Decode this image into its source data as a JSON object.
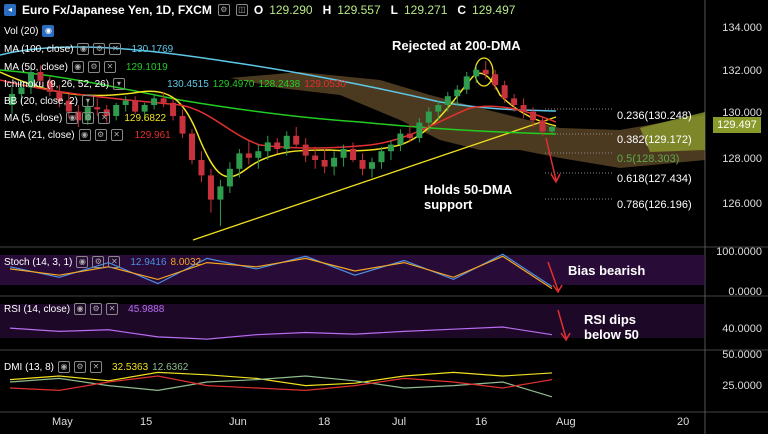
{
  "header": {
    "symbol": "Euro Fx/Japanese Yen, 1D, FXCM",
    "open_label": "O",
    "open": "129.290",
    "high_label": "H",
    "high": "129.557",
    "low_label": "L",
    "low": "129.271",
    "close_label": "C",
    "close": "129.497"
  },
  "legend": {
    "vol": "Vol (20)",
    "ma100": "MA (100, close)",
    "ma100_val": "130.1769",
    "ma50": "MA (50, close)",
    "ma50_val": "129.1019",
    "ichimoku": "Ichimoku (9, 26, 52, 26)",
    "ichi_vals": [
      "130.4515",
      "129.4970",
      "128.2438",
      "129.0530"
    ],
    "bb": "BB (20, close, 2)",
    "ma5": "MA (5, close)",
    "ma5_val": "129.6822",
    "ema21": "EMA (21, close)",
    "ema21_val": "129.961",
    "stoch": "Stoch (14, 3, 1)",
    "stoch_vals": [
      "12.9416",
      "8.0032"
    ],
    "rsi": "RSI (14, close)",
    "rsi_val": "45.9888",
    "dmi": "DMI (13, 8)",
    "dmi_vals": [
      "32.5363",
      "12.6362"
    ]
  },
  "annotations": {
    "rejected": "Rejected at 200-DMA",
    "holds": [
      "Holds 50-DMA",
      "support"
    ],
    "bias": "Bias bearish",
    "rsi": [
      "RSI dips",
      "below 50"
    ]
  },
  "fib_labels": [
    "0.236(130.248)",
    "0.382(129.172)",
    "0.5(128.303)",
    "0.618(127.434)",
    "0.786(126.196)"
  ],
  "price_box": "129.497",
  "colors": {
    "up": "#2e9e4e",
    "down": "#c8323c",
    "ma100": "#5ec8e8",
    "ma50": "#22cc22",
    "ma5": "#f0e020",
    "ema21": "#e03030",
    "cloud": "#8a6a3a",
    "stoch": "#7b1fa2"
  },
  "chart_data": [
    {
      "type": "candlestick",
      "title": "Euro Fx/Japanese Yen, 1D, FXCM",
      "y_axis": {
        "ticks": [
          126,
          128,
          130,
          132,
          134
        ],
        "tick_labels": [
          "126.000",
          "128.000",
          "130.000",
          "132.000",
          "134.000"
        ],
        "range": [
          124.4,
          135.2
        ]
      },
      "x_axis": {
        "tick_labels": [
          "May",
          "15",
          "Jun",
          "18",
          "Jul",
          "16",
          "Aug",
          "20"
        ]
      },
      "candles": [
        [
          130.5,
          131.3,
          130.1,
          131.0
        ],
        [
          131.0,
          131.6,
          130.6,
          131.3
        ],
        [
          131.3,
          132.2,
          131.0,
          132.0
        ],
        [
          132.0,
          132.3,
          131.4,
          131.6
        ],
        [
          131.6,
          131.8,
          130.9,
          131.1
        ],
        [
          131.1,
          131.4,
          130.4,
          130.7
        ],
        [
          130.7,
          131.0,
          129.9,
          130.2
        ],
        [
          130.2,
          130.5,
          129.5,
          129.8
        ],
        [
          129.8,
          130.7,
          129.6,
          130.4
        ],
        [
          130.4,
          130.8,
          130.0,
          130.3
        ],
        [
          130.3,
          130.5,
          129.7,
          130.0
        ],
        [
          130.0,
          130.6,
          129.8,
          130.5
        ],
        [
          130.5,
          130.9,
          130.2,
          130.7
        ],
        [
          130.7,
          130.9,
          130.1,
          130.2
        ],
        [
          130.2,
          130.6,
          129.8,
          130.5
        ],
        [
          130.5,
          131.0,
          130.3,
          130.8
        ],
        [
          130.8,
          131.1,
          130.4,
          130.6
        ],
        [
          130.6,
          130.8,
          129.8,
          130.0
        ],
        [
          130.0,
          130.3,
          129.0,
          129.2
        ],
        [
          129.2,
          129.4,
          127.8,
          128.0
        ],
        [
          128.0,
          128.4,
          127.0,
          127.3
        ],
        [
          127.3,
          127.6,
          125.6,
          126.2
        ],
        [
          126.2,
          127.1,
          125.0,
          126.8
        ],
        [
          126.8,
          127.9,
          126.5,
          127.6
        ],
        [
          127.6,
          128.5,
          127.2,
          128.3
        ],
        [
          128.3,
          128.9,
          127.8,
          128.1
        ],
        [
          128.1,
          128.7,
          127.6,
          128.4
        ],
        [
          128.4,
          129.1,
          128.0,
          128.8
        ],
        [
          128.8,
          129.0,
          128.3,
          128.5
        ],
        [
          128.5,
          129.3,
          128.2,
          129.1
        ],
        [
          129.1,
          129.5,
          128.6,
          128.7
        ],
        [
          128.7,
          129.0,
          127.9,
          128.2
        ],
        [
          128.2,
          128.6,
          127.6,
          128.0
        ],
        [
          128.0,
          128.5,
          127.4,
          127.7
        ],
        [
          127.7,
          128.4,
          127.3,
          128.1
        ],
        [
          128.1,
          128.7,
          127.7,
          128.5
        ],
        [
          128.5,
          128.8,
          127.9,
          128.0
        ],
        [
          128.0,
          128.3,
          127.3,
          127.6
        ],
        [
          127.6,
          128.1,
          127.2,
          127.9
        ],
        [
          127.9,
          128.6,
          127.6,
          128.4
        ],
        [
          128.4,
          128.9,
          128.0,
          128.7
        ],
        [
          128.7,
          129.4,
          128.4,
          129.2
        ],
        [
          129.2,
          129.6,
          128.8,
          129.0
        ],
        [
          129.0,
          129.9,
          128.8,
          129.7
        ],
        [
          129.7,
          130.4,
          129.3,
          130.2
        ],
        [
          130.2,
          130.7,
          129.8,
          130.5
        ],
        [
          130.5,
          131.1,
          130.2,
          130.9
        ],
        [
          130.9,
          131.4,
          130.5,
          131.2
        ],
        [
          131.2,
          132.0,
          131.0,
          131.8
        ],
        [
          131.8,
          132.3,
          131.5,
          132.1
        ],
        [
          132.1,
          132.5,
          131.7,
          131.9
        ],
        [
          131.9,
          132.1,
          131.2,
          131.4
        ],
        [
          131.4,
          131.6,
          130.6,
          130.8
        ],
        [
          130.8,
          131.0,
          130.2,
          130.5
        ],
        [
          130.5,
          130.8,
          129.9,
          130.2
        ],
        [
          130.2,
          130.4,
          129.5,
          129.8
        ],
        [
          129.8,
          130.0,
          129.1,
          129.3
        ],
        [
          129.3,
          129.6,
          129.2,
          129.5
        ]
      ],
      "series": [
        {
          "name": "MA (100, close)",
          "values": [
            131.0,
            131.0,
            130.95,
            130.9,
            130.85,
            130.8,
            130.75,
            130.7
          ]
        },
        {
          "name": "MA (50, close)",
          "values": [
            130.8,
            130.5,
            130.2,
            129.8,
            129.4,
            129.2,
            129.1,
            129.1
          ]
        },
        {
          "name": "MA (5, close)",
          "values": [
            131.2,
            130.6,
            130.3,
            127.0,
            128.2,
            128.0,
            131.6,
            129.68
          ]
        },
        {
          "name": "EMA (21, close)",
          "values": [
            130.9,
            130.5,
            130.4,
            128.9,
            128.5,
            128.2,
            130.5,
            129.96
          ]
        }
      ],
      "fibonacci": [
        {
          "level": "0.236",
          "price": 130.248
        },
        {
          "level": "0.382",
          "price": 129.172
        },
        {
          "level": "0.5",
          "price": 128.303
        },
        {
          "level": "0.618",
          "price": 127.434
        },
        {
          "level": "0.786",
          "price": 126.196
        }
      ]
    },
    {
      "type": "line",
      "title": "Stoch (14, 3, 1)",
      "y_axis": {
        "tick_labels": [
          "0.0000",
          "100.0000"
        ],
        "range": [
          0,
          100
        ]
      },
      "series": [
        {
          "name": "K",
          "values": [
            60,
            35,
            70,
            20,
            80,
            55,
            85,
            40,
            75,
            30,
            90,
            12.94
          ]
        },
        {
          "name": "D",
          "values": [
            55,
            40,
            60,
            30,
            70,
            60,
            80,
            50,
            70,
            35,
            85,
            8.0
          ]
        }
      ]
    },
    {
      "type": "line",
      "title": "RSI (14, close)",
      "y_axis": {
        "tick_labels": [
          "40.0000"
        ]
      },
      "series": [
        {
          "name": "RSI",
          "values": [
            58,
            52,
            55,
            42,
            38,
            46,
            50,
            47,
            52,
            56,
            60,
            45.99
          ]
        }
      ]
    },
    {
      "type": "line",
      "title": "DMI (13, 8)",
      "y_axis": {
        "tick_labels": [
          "25.0000",
          "50.0000"
        ]
      },
      "series": [
        {
          "name": "ADX",
          "values": [
            27,
            30,
            26,
            33,
            31,
            28,
            22,
            24,
            30,
            33,
            30,
            32.54
          ]
        },
        {
          "name": "+DI",
          "values": [
            25,
            28,
            22,
            18,
            25,
            27,
            30,
            26,
            20,
            22,
            25,
            12.64
          ]
        },
        {
          "name": "-DI",
          "values": [
            20,
            18,
            25,
            30,
            22,
            20,
            18,
            22,
            28,
            25,
            20,
            27
          ]
        }
      ]
    }
  ]
}
